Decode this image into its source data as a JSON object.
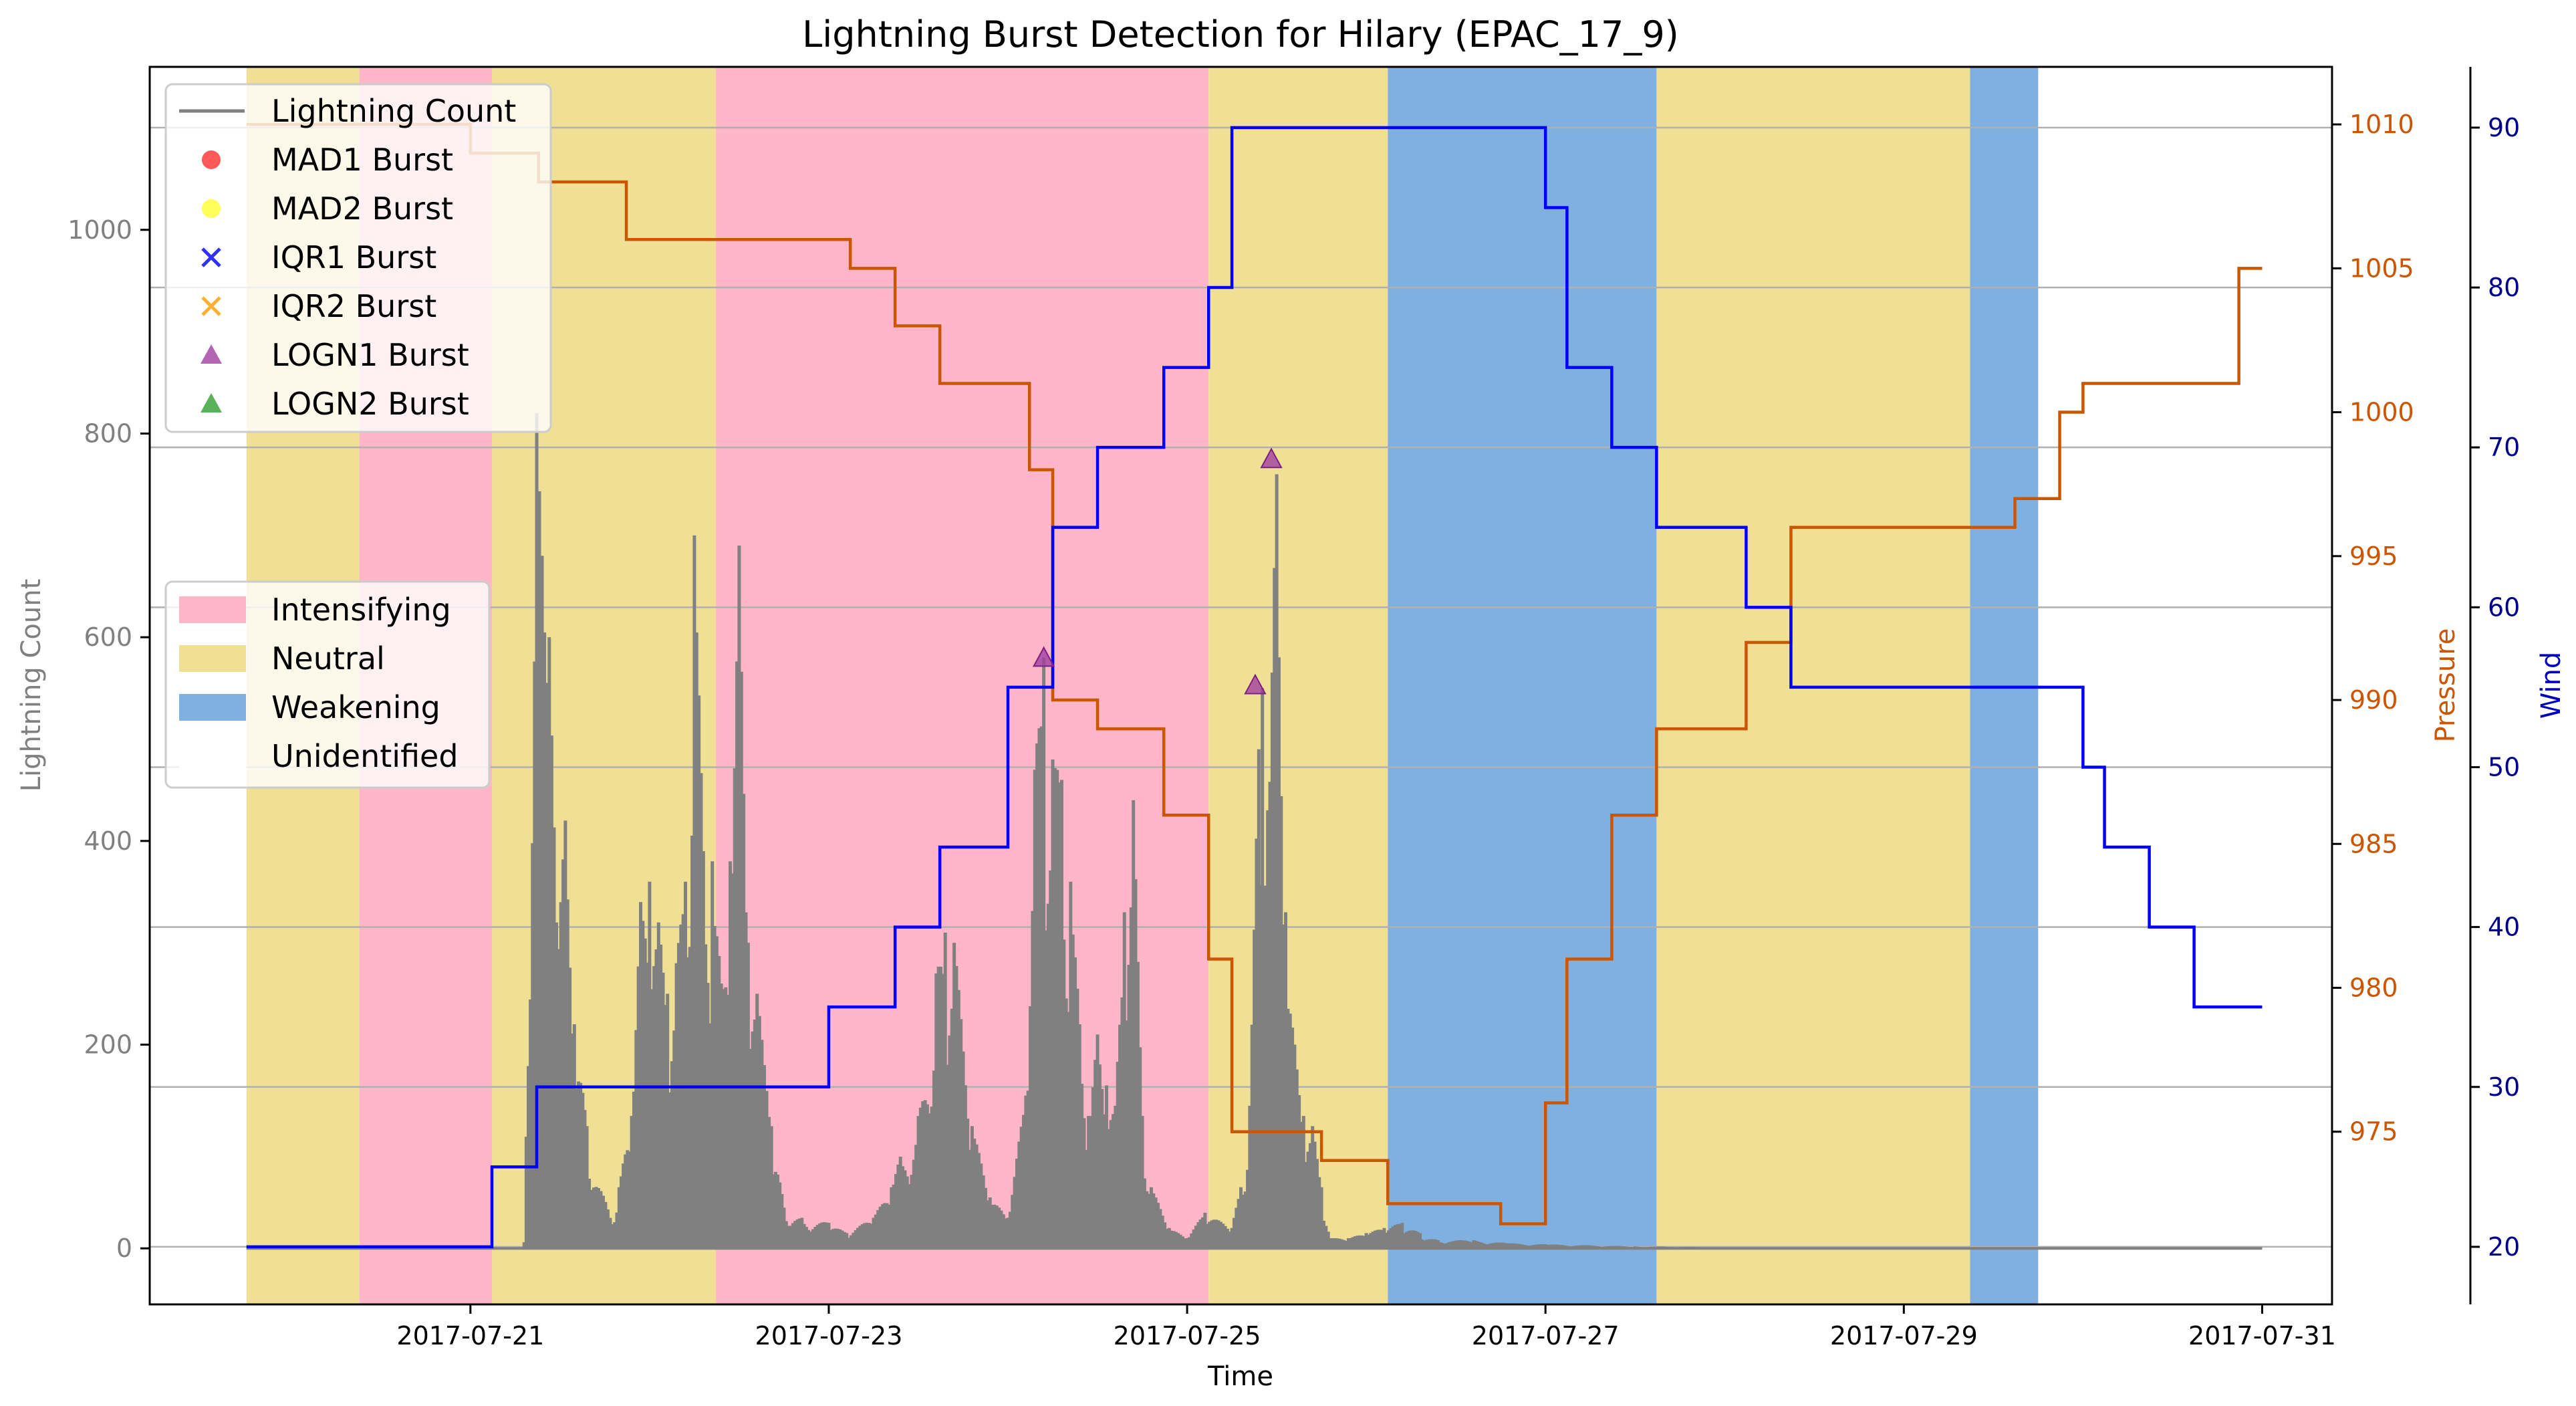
{
  "chart_data": {
    "type": "bar",
    "title": "Lightning Burst Detection for Hilary (EPAC_17_9)",
    "xlabel": "Time",
    "ylabel": "Lightning Count",
    "ylabel_pressure": "Pressure",
    "ylabel_wind": "Wind",
    "x_tick_labels": [
      "2017-07-21",
      "2017-07-23",
      "2017-07-25",
      "2017-07-27",
      "2017-07-29",
      "2017-07-31"
    ],
    "x_ticks_days": [
      1,
      3,
      5,
      7,
      9,
      11
    ],
    "xlim_days": [
      -0.79,
      11.39
    ],
    "ylim": [
      -55,
      1160
    ],
    "y_ticks": [
      0,
      200,
      400,
      600,
      800,
      1000
    ],
    "pressure_lim": [
      969.0,
      1012.0
    ],
    "pressure_ticks": [
      975,
      980,
      985,
      990,
      995,
      1000,
      1005,
      1010
    ],
    "wind_lim": [
      16.4,
      93.8
    ],
    "wind_ticks": [
      20,
      30,
      40,
      50,
      60,
      70,
      80,
      90
    ],
    "colors": {
      "lightning": "#808080",
      "pressure": "#cc5500",
      "wind": "#0000ff",
      "intensifying": "#ffb6c8",
      "neutral": "#f0e096",
      "weakening": "#80b0e0",
      "grid": "#b0b0b0",
      "logn1": "#a040a0"
    },
    "legend_lines": [
      "Lightning Count",
      "MAD1 Burst",
      "MAD2 Burst",
      "IQR1 Burst",
      "IQR2 Burst",
      "LOGN1 Burst",
      "LOGN2 Burst"
    ],
    "legend_markers": [
      {
        "label": "MAD1 Burst",
        "shape": "circle",
        "color": "#ff3030"
      },
      {
        "label": "MAD2 Burst",
        "shape": "circle",
        "color": "#ffff30"
      },
      {
        "label": "IQR1 Burst",
        "shape": "x",
        "color": "#3030ff"
      },
      {
        "label": "IQR2 Burst",
        "shape": "x",
        "color": "#ffb030"
      },
      {
        "label": "LOGN1 Burst",
        "shape": "triangle",
        "color": "#a040a0"
      },
      {
        "label": "LOGN2 Burst",
        "shape": "triangle",
        "color": "#30a030"
      }
    ],
    "legend_phases": [
      "Intensifying",
      "Neutral",
      "Weakening",
      "Unidentified"
    ],
    "phases": [
      {
        "name": "Neutral",
        "start": -0.25,
        "end": 0.38
      },
      {
        "name": "Intensifying",
        "start": 0.38,
        "end": 1.12
      },
      {
        "name": "Neutral",
        "start": 1.12,
        "end": 2.37
      },
      {
        "name": "Intensifying",
        "start": 2.37,
        "end": 5.12
      },
      {
        "name": "Neutral",
        "start": 5.12,
        "end": 6.12
      },
      {
        "name": "Weakening",
        "start": 6.12,
        "end": 7.62
      },
      {
        "name": "Neutral",
        "start": 7.62,
        "end": 9.37
      },
      {
        "name": "Weakening",
        "start": 9.37,
        "end": 9.75
      }
    ],
    "pressure": [
      [
        -0.25,
        1010
      ],
      [
        1.0,
        1009
      ],
      [
        1.38,
        1008
      ],
      [
        1.87,
        1006
      ],
      [
        3.12,
        1005
      ],
      [
        3.37,
        1003
      ],
      [
        3.62,
        1001
      ],
      [
        4.12,
        998
      ],
      [
        4.25,
        990
      ],
      [
        4.5,
        989
      ],
      [
        4.87,
        986
      ],
      [
        5.12,
        981
      ],
      [
        5.25,
        975
      ],
      [
        5.75,
        974
      ],
      [
        6.12,
        972.5
      ],
      [
        6.75,
        971.8
      ],
      [
        7.0,
        976
      ],
      [
        7.12,
        981
      ],
      [
        7.37,
        986
      ],
      [
        7.62,
        989
      ],
      [
        8.12,
        992
      ],
      [
        8.37,
        996
      ],
      [
        9.62,
        997
      ],
      [
        9.87,
        1000
      ],
      [
        10.0,
        1001
      ],
      [
        10.87,
        1005
      ],
      [
        11.0,
        1005
      ]
    ],
    "wind": [
      [
        -0.25,
        20
      ],
      [
        1.12,
        25
      ],
      [
        1.37,
        30
      ],
      [
        3.0,
        35
      ],
      [
        3.37,
        40
      ],
      [
        3.62,
        45
      ],
      [
        4.0,
        55
      ],
      [
        4.25,
        65
      ],
      [
        4.5,
        70
      ],
      [
        4.87,
        75
      ],
      [
        5.12,
        80
      ],
      [
        5.25,
        90
      ],
      [
        7.0,
        85
      ],
      [
        7.12,
        75
      ],
      [
        7.37,
        70
      ],
      [
        7.62,
        65
      ],
      [
        8.12,
        60
      ],
      [
        8.37,
        55
      ],
      [
        9.62,
        55
      ],
      [
        9.87,
        55
      ],
      [
        10.0,
        50
      ],
      [
        10.12,
        45
      ],
      [
        10.37,
        40
      ],
      [
        10.62,
        35
      ],
      [
        11.0,
        35
      ]
    ],
    "lightning_peaks": [
      [
        1.3,
        6
      ],
      [
        1.37,
        820
      ],
      [
        1.4,
        680
      ],
      [
        1.44,
        600
      ],
      [
        1.48,
        320
      ],
      [
        1.53,
        420
      ],
      [
        1.58,
        220
      ],
      [
        1.65,
        120
      ],
      [
        1.78,
        30
      ],
      [
        1.83,
        60
      ],
      [
        1.9,
        130
      ],
      [
        1.95,
        340
      ],
      [
        2.0,
        360
      ],
      [
        2.05,
        320
      ],
      [
        2.1,
        250
      ],
      [
        2.15,
        280
      ],
      [
        2.2,
        360
      ],
      [
        2.25,
        700
      ],
      [
        2.3,
        390
      ],
      [
        2.35,
        380
      ],
      [
        2.4,
        260
      ],
      [
        2.45,
        380
      ],
      [
        2.5,
        690
      ],
      [
        2.55,
        300
      ],
      [
        2.6,
        250
      ],
      [
        2.68,
        120
      ],
      [
        2.75,
        40
      ],
      [
        2.85,
        30
      ],
      [
        3.0,
        25
      ],
      [
        3.1,
        15
      ],
      [
        3.25,
        30
      ],
      [
        3.35,
        60
      ],
      [
        3.4,
        90
      ],
      [
        3.5,
        130
      ],
      [
        3.6,
        270
      ],
      [
        3.65,
        310
      ],
      [
        3.7,
        300
      ],
      [
        3.8,
        120
      ],
      [
        3.9,
        50
      ],
      [
        4.0,
        30
      ],
      [
        4.1,
        150
      ],
      [
        4.15,
        470
      ],
      [
        4.2,
        580
      ],
      [
        4.25,
        480
      ],
      [
        4.3,
        460
      ],
      [
        4.35,
        360
      ],
      [
        4.4,
        220
      ],
      [
        4.45,
        130
      ],
      [
        4.5,
        210
      ],
      [
        4.55,
        160
      ],
      [
        4.6,
        140
      ],
      [
        4.65,
        330
      ],
      [
        4.7,
        440
      ],
      [
        4.75,
        130
      ],
      [
        4.8,
        60
      ],
      [
        4.9,
        20
      ],
      [
        5.0,
        10
      ],
      [
        5.1,
        35
      ],
      [
        5.25,
        20
      ],
      [
        5.3,
        60
      ],
      [
        5.35,
        140
      ],
      [
        5.4,
        490
      ],
      [
        5.42,
        550
      ],
      [
        5.45,
        430
      ],
      [
        5.5,
        760
      ],
      [
        5.55,
        330
      ],
      [
        5.6,
        200
      ],
      [
        5.65,
        130
      ],
      [
        5.7,
        120
      ],
      [
        5.75,
        60
      ],
      [
        5.8,
        10
      ],
      [
        5.9,
        10
      ],
      [
        6.0,
        15
      ],
      [
        6.1,
        20
      ],
      [
        6.2,
        25
      ],
      [
        6.3,
        15
      ],
      [
        6.4,
        8
      ],
      [
        6.6,
        8
      ],
      [
        6.8,
        5
      ],
      [
        7.0,
        4
      ],
      [
        7.5,
        2
      ],
      [
        8.0,
        1
      ],
      [
        11.0,
        0
      ]
    ],
    "logn1_bursts": [
      {
        "x": 4.2,
        "y": 580
      },
      {
        "x": 5.38,
        "y": 553
      },
      {
        "x": 5.47,
        "y": 775
      }
    ]
  }
}
